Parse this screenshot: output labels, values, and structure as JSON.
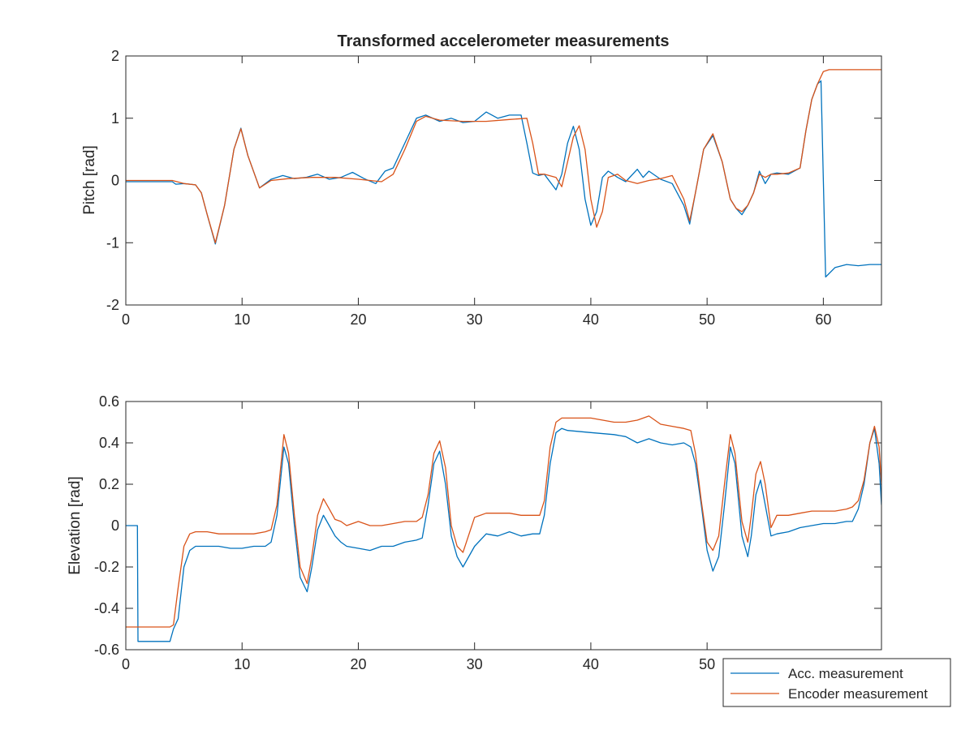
{
  "chart_data": [
    {
      "type": "line",
      "title": "Transformed accelerometer measurements",
      "xlabel": "",
      "ylabel": "Pitch [rad]",
      "xlim": [
        0,
        65
      ],
      "ylim": [
        -2,
        2
      ],
      "xticks": [
        0,
        10,
        20,
        30,
        40,
        50,
        60
      ],
      "yticks": [
        -2,
        -1,
        0,
        1,
        2
      ],
      "grid": false,
      "series": [
        {
          "name": "Acc. measurement",
          "color": "#0072BD",
          "x": [
            0,
            2,
            4,
            4.3,
            5,
            6,
            6.5,
            7,
            7.7,
            8.5,
            9.3,
            9.9,
            10.5,
            11.5,
            12.5,
            13.5,
            14.5,
            15.5,
            16.5,
            17.5,
            18.5,
            19.5,
            20.5,
            21.5,
            22.3,
            23,
            24,
            25,
            25.8,
            27,
            28,
            29,
            30,
            31,
            32,
            33,
            34,
            34.5,
            35,
            35.5,
            36,
            37,
            37.5,
            38,
            38.5,
            39,
            39.5,
            40,
            40.5,
            41,
            41.5,
            42.3,
            43,
            44,
            44.5,
            45,
            46,
            47,
            48,
            48.5,
            49,
            49.7,
            50.5,
            51.3,
            52,
            52.5,
            53,
            53.5,
            54,
            54.5,
            55,
            55.5,
            56,
            57,
            58,
            58.5,
            59,
            59.5,
            59.8,
            60.2,
            61,
            62,
            63,
            64,
            65
          ],
          "y": [
            -0.02,
            -0.02,
            -0.02,
            -0.06,
            -0.05,
            -0.07,
            -0.2,
            -0.55,
            -1.02,
            -0.4,
            0.5,
            0.84,
            0.4,
            -0.12,
            0.02,
            0.08,
            0.03,
            0.05,
            0.1,
            0.02,
            0.05,
            0.13,
            0.03,
            -0.05,
            0.15,
            0.2,
            0.6,
            1.0,
            1.05,
            0.95,
            1.0,
            0.93,
            0.95,
            1.1,
            1.0,
            1.05,
            1.05,
            0.6,
            0.12,
            0.08,
            0.1,
            -0.15,
            0.1,
            0.6,
            0.87,
            0.5,
            -0.3,
            -0.72,
            -0.5,
            0.05,
            0.15,
            0.05,
            -0.02,
            0.18,
            0.05,
            0.15,
            0.02,
            -0.05,
            -0.4,
            -0.7,
            -0.2,
            0.5,
            0.72,
            0.3,
            -0.3,
            -0.45,
            -0.55,
            -0.4,
            -0.2,
            0.15,
            -0.05,
            0.1,
            0.12,
            0.1,
            0.2,
            0.8,
            1.3,
            1.55,
            1.6,
            -1.55,
            -1.4,
            -1.35,
            -1.37,
            -1.35,
            -1.35
          ]
        },
        {
          "name": "Encoder measurement",
          "color": "#D95319",
          "x": [
            0,
            4,
            5,
            6,
            6.5,
            7,
            7.7,
            8.5,
            9.3,
            9.9,
            10.5,
            11.5,
            12.5,
            14,
            16,
            18,
            20,
            22,
            23,
            24,
            25,
            25.8,
            27,
            29,
            31,
            33,
            34.5,
            35,
            35.5,
            36,
            37,
            37.5,
            38,
            38.5,
            39,
            39.5,
            40,
            40.5,
            41,
            41.5,
            42.3,
            43,
            44,
            45,
            46,
            47,
            48,
            48.5,
            49,
            49.7,
            50.5,
            51.3,
            52,
            52.5,
            53,
            53.5,
            54,
            54.5,
            55,
            55.5,
            56,
            57,
            58,
            58.5,
            59,
            59.5,
            60,
            60.5,
            61,
            63,
            65
          ],
          "y": [
            0.0,
            0.0,
            -0.05,
            -0.07,
            -0.2,
            -0.55,
            -1.0,
            -0.4,
            0.5,
            0.83,
            0.4,
            -0.12,
            0.0,
            0.03,
            0.05,
            0.05,
            0.02,
            -0.02,
            0.1,
            0.5,
            0.95,
            1.03,
            0.97,
            0.95,
            0.95,
            0.98,
            1.0,
            0.6,
            0.1,
            0.1,
            0.05,
            -0.1,
            0.3,
            0.7,
            0.88,
            0.5,
            -0.3,
            -0.75,
            -0.5,
            0.05,
            0.1,
            0.0,
            -0.05,
            0.0,
            0.03,
            0.08,
            -0.3,
            -0.65,
            -0.2,
            0.5,
            0.75,
            0.3,
            -0.3,
            -0.45,
            -0.5,
            -0.4,
            -0.2,
            0.1,
            0.05,
            0.1,
            0.1,
            0.12,
            0.2,
            0.8,
            1.3,
            1.55,
            1.75,
            1.78,
            1.78,
            1.78,
            1.78
          ]
        }
      ]
    },
    {
      "type": "line",
      "title": "",
      "xlabel": "",
      "ylabel": "Elevation [rad]",
      "xlim": [
        0,
        65
      ],
      "ylim": [
        -0.6,
        0.6
      ],
      "xticks": [
        0,
        10,
        20,
        30,
        40,
        50
      ],
      "yticks": [
        -0.6,
        -0.4,
        -0.2,
        0,
        0.2,
        0.4,
        0.6
      ],
      "grid": false,
      "legend_position": "bottom-right",
      "legend": [
        "Acc. measurement",
        "Encoder measurement"
      ],
      "series": [
        {
          "name": "Acc. measurement",
          "color": "#0072BD",
          "x": [
            0,
            1.0,
            1.05,
            2,
            3,
            3.8,
            4.1,
            4.5,
            5,
            5.5,
            6,
            7,
            8,
            9,
            10,
            11,
            12,
            12.5,
            13,
            13.6,
            14,
            14.5,
            15,
            15.6,
            16,
            16.5,
            17,
            17.5,
            18,
            18.5,
            19,
            20,
            21,
            22,
            23,
            24,
            25,
            25.5,
            26,
            26.5,
            27,
            27.5,
            28,
            28.5,
            29,
            30,
            31,
            32,
            33,
            34,
            35,
            35.6,
            36,
            36.5,
            37,
            37.5,
            38,
            40,
            42,
            43,
            44,
            45,
            46,
            47,
            48,
            48.6,
            49,
            49.5,
            50,
            50.5,
            51,
            51.5,
            52,
            52.4,
            53,
            53.5,
            53.8,
            54.2,
            54.6,
            55,
            55.5,
            56,
            57,
            58,
            59,
            60,
            61,
            62,
            62.5,
            63,
            63.5,
            64,
            64.4,
            64.8,
            65
          ],
          "y": [
            0.0,
            0.0,
            -0.56,
            -0.56,
            -0.56,
            -0.56,
            -0.5,
            -0.45,
            -0.2,
            -0.12,
            -0.1,
            -0.1,
            -0.1,
            -0.11,
            -0.11,
            -0.1,
            -0.1,
            -0.08,
            0.05,
            0.38,
            0.3,
            0.0,
            -0.25,
            -0.32,
            -0.2,
            -0.02,
            0.05,
            0.0,
            -0.05,
            -0.08,
            -0.1,
            -0.11,
            -0.12,
            -0.1,
            -0.1,
            -0.08,
            -0.07,
            -0.06,
            0.1,
            0.3,
            0.36,
            0.2,
            -0.05,
            -0.15,
            -0.2,
            -0.1,
            -0.04,
            -0.05,
            -0.03,
            -0.05,
            -0.04,
            -0.04,
            0.05,
            0.3,
            0.45,
            0.47,
            0.46,
            0.45,
            0.44,
            0.43,
            0.4,
            0.42,
            0.4,
            0.39,
            0.4,
            0.38,
            0.3,
            0.1,
            -0.12,
            -0.22,
            -0.15,
            0.1,
            0.38,
            0.3,
            -0.05,
            -0.15,
            -0.05,
            0.15,
            0.22,
            0.1,
            -0.05,
            -0.04,
            -0.03,
            -0.01,
            0.0,
            0.01,
            0.01,
            0.02,
            0.02,
            0.08,
            0.2,
            0.4,
            0.47,
            0.3,
            0.1
          ]
        },
        {
          "name": "Encoder measurement",
          "color": "#D95319",
          "x": [
            0,
            3.8,
            4.1,
            4.5,
            5,
            5.5,
            6,
            7,
            8,
            9,
            10,
            11,
            12,
            12.5,
            13,
            13.6,
            14,
            14.5,
            15,
            15.6,
            16,
            16.5,
            17,
            17.5,
            18,
            18.5,
            19,
            20,
            21,
            22,
            23,
            24,
            25,
            25.5,
            26,
            26.5,
            27,
            27.5,
            28,
            28.5,
            29,
            30,
            31,
            32,
            33,
            34,
            35,
            35.6,
            36,
            36.5,
            37,
            37.5,
            38,
            40,
            42,
            43,
            44,
            45,
            46,
            47,
            48,
            48.6,
            49,
            49.5,
            50,
            50.5,
            51,
            51.5,
            52,
            52.4,
            53,
            53.5,
            53.8,
            54.2,
            54.6,
            55,
            55.5,
            56,
            57,
            58,
            59,
            60,
            61,
            62,
            62.5,
            63,
            63.5,
            64,
            64.4,
            64.8,
            65
          ],
          "y": [
            -0.49,
            -0.49,
            -0.48,
            -0.3,
            -0.1,
            -0.04,
            -0.03,
            -0.03,
            -0.04,
            -0.04,
            -0.04,
            -0.04,
            -0.03,
            -0.02,
            0.1,
            0.44,
            0.35,
            0.05,
            -0.2,
            -0.28,
            -0.15,
            0.05,
            0.13,
            0.08,
            0.03,
            0.02,
            0.0,
            0.02,
            0.0,
            0.0,
            0.01,
            0.02,
            0.02,
            0.04,
            0.15,
            0.35,
            0.41,
            0.28,
            0.0,
            -0.1,
            -0.13,
            0.04,
            0.06,
            0.06,
            0.06,
            0.05,
            0.05,
            0.05,
            0.12,
            0.38,
            0.5,
            0.52,
            0.52,
            0.52,
            0.5,
            0.5,
            0.51,
            0.53,
            0.49,
            0.48,
            0.47,
            0.46,
            0.35,
            0.12,
            -0.08,
            -0.12,
            -0.05,
            0.2,
            0.44,
            0.35,
            0.02,
            -0.08,
            0.05,
            0.25,
            0.31,
            0.2,
            -0.01,
            0.05,
            0.05,
            0.06,
            0.07,
            0.07,
            0.07,
            0.08,
            0.09,
            0.12,
            0.22,
            0.4,
            0.48,
            0.38,
            0.2
          ]
        }
      ]
    }
  ]
}
